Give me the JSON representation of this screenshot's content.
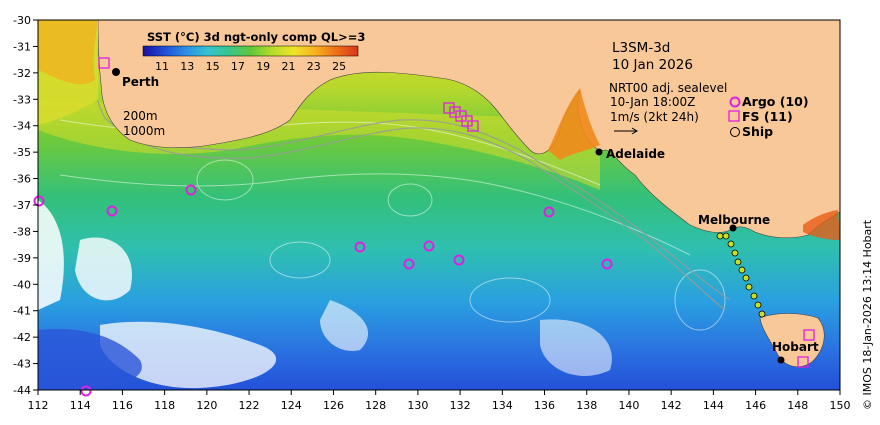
{
  "colorbar": {
    "title": "SST (°C) 3d ngt-only comp QL>=3",
    "ticks": [
      "11",
      "13",
      "15",
      "17",
      "19",
      "21",
      "23",
      "25"
    ],
    "colors": [
      "#1a0fa0",
      "#1f4fd6",
      "#2d8fe6",
      "#35c2d0",
      "#39c58a",
      "#5fc63c",
      "#b6dc2a",
      "#f0e428",
      "#f7b21e",
      "#ef6f18",
      "#d8341a"
    ]
  },
  "header": {
    "product": "L3SM-3d",
    "date": "10 Jan 2026"
  },
  "info": {
    "sealevel": "NRT00 adj. sealevel",
    "time": "10-Jan 18:00Z",
    "vector_scale": "1m/s (2kt 24h)"
  },
  "legend": {
    "argo": "Argo (10)",
    "fs": "FS (11)",
    "ship": "Ship"
  },
  "contours": {
    "label_200": "200m",
    "label_1000": "1000m"
  },
  "places": {
    "perth": "Perth",
    "adelaide": "Adelaide",
    "melbourne": "Melbourne",
    "hobart": "Hobart"
  },
  "axes": {
    "x_ticks": [
      "112",
      "114",
      "116",
      "118",
      "120",
      "122",
      "124",
      "126",
      "128",
      "130",
      "132",
      "134",
      "136",
      "138",
      "140",
      "142",
      "144",
      "146",
      "148",
      "150"
    ],
    "y_ticks": [
      "-30",
      "-31",
      "-32",
      "-33",
      "-34",
      "-35",
      "-36",
      "-37",
      "-38",
      "-39",
      "-40",
      "-41",
      "-42",
      "-43",
      "-44"
    ]
  },
  "credit": "© IMOS 18-Jan-2026 13:14 Hobart",
  "colors": {
    "land": "#f9c898",
    "argo": "#e020e0",
    "fs": "#e020e0",
    "ship": "#000000"
  }
}
